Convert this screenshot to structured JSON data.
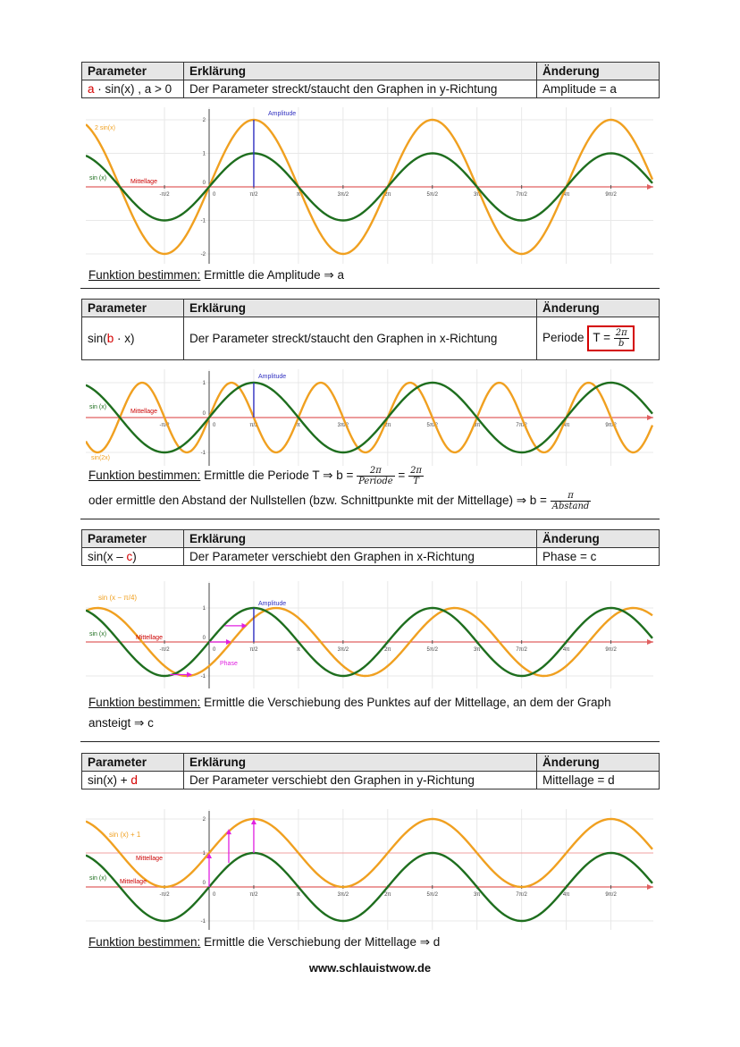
{
  "table_headers": {
    "parameter": "Parameter",
    "erklaerung": "Erklärung",
    "aenderung": "Änderung"
  },
  "sections": [
    {
      "param_parts": [
        {
          "t": "a",
          "red": true
        },
        {
          "t": " · sin(x) , a > 0",
          "red": false
        }
      ],
      "erklaerung": "Der Parameter streckt/staucht den Graphen in y-Richtung",
      "aenderung": "Amplitude = a"
    },
    {
      "param_parts": [
        {
          "t": "sin(",
          "red": false
        },
        {
          "t": "b",
          "red": true
        },
        {
          "t": " · x)",
          "red": false
        }
      ],
      "erklaerung": "Der Parameter streckt/staucht den Graphen in x-Richtung",
      "aenderung": "Periode",
      "formula": {
        "lhs": "T =",
        "num": "2π",
        "den": "b"
      }
    },
    {
      "param_parts": [
        {
          "t": "sin(x – ",
          "red": false
        },
        {
          "t": "c",
          "red": true
        },
        {
          "t": ")",
          "red": false
        }
      ],
      "erklaerung": "Der Parameter verschiebt den Graphen in x-Richtung",
      "aenderung": "Phase = c"
    },
    {
      "param_parts": [
        {
          "t": "sin(x) + ",
          "red": false
        },
        {
          "t": "d",
          "red": true
        }
      ],
      "erklaerung": "Der Parameter verschiebt den Graphen in y-Richtung",
      "aenderung": "Mittellage = d"
    }
  ],
  "texts": {
    "fb": "Funktion bestimmen:",
    "t1": "Ermittle die Amplitude ⇒ a",
    "t2a": "Ermittle die Periode T ⇒ b =",
    "t2_f1": {
      "num": "2π",
      "den": "Periode"
    },
    "t2_eq": "=",
    "t2_f2": {
      "num": "2π",
      "den": "T"
    },
    "t2b": "oder ermittle den Abstand der Nullstellen (bzw. Schnittpunkte mit der Mittellage) ⇒ b =",
    "t2_f3": {
      "num": "π",
      "den": "Abstand"
    },
    "t3a": "Ermittle die Verschiebung des Punktes auf der Mittellage, an dem der Graph",
    "t3b": "ansteigt ⇒ c",
    "t4": "Ermittle die Verschiebung der Mittellage ⇒ d"
  },
  "footer": "www.schlauistwow.de",
  "colors": {
    "green": "#1e6e1e",
    "orange": "#f0a020",
    "axis": "#e06060",
    "blue": "#3030c0",
    "magenta": "#e020e0"
  },
  "x_tick_labels": [
    "-π/2",
    "0",
    "π/2",
    "π",
    "3π/2",
    "2π",
    "5π/2",
    "3π",
    "7π/2",
    "4π",
    "9π/2"
  ],
  "graphs": [
    {
      "y_ticks": [
        "2",
        "1",
        "0",
        "-1",
        "-2"
      ],
      "labels": {
        "orange": "2 sin(x)",
        "green": "sin (x)",
        "mittellage": "Mittellage",
        "amplitude": "Amplitude"
      },
      "chart_data": {
        "type": "line",
        "xlim": [
          -4.0,
          14.9
        ],
        "ylim": [
          -2.2,
          2.2
        ],
        "series": [
          {
            "name": "2 sin(x)",
            "fn": "2*sin(x)"
          },
          {
            "name": "sin (x)",
            "fn": "sin(x)"
          }
        ]
      }
    },
    {
      "y_ticks": [
        "1",
        "0",
        "-1"
      ],
      "labels": {
        "orange": "sin(2x)",
        "green": "sin (x)",
        "mittellage": "Mittellage",
        "amplitude": "Amplitude"
      },
      "chart_data": {
        "type": "line",
        "xlim": [
          -4.0,
          14.9
        ],
        "ylim": [
          -1.2,
          1.2
        ],
        "series": [
          {
            "name": "sin(2x)",
            "fn": "sin(2x)"
          },
          {
            "name": "sin (x)",
            "fn": "sin(x)"
          }
        ]
      }
    },
    {
      "y_ticks": [
        "1",
        "0",
        "-1"
      ],
      "labels": {
        "orange": "sin (x − π/4)",
        "green": "sin (x)",
        "mittellage": "Mittellage",
        "amplitude": "Amplitude",
        "phase": "Phase"
      },
      "chart_data": {
        "type": "line",
        "xlim": [
          -4.0,
          14.9
        ],
        "ylim": [
          -1.2,
          1.2
        ],
        "series": [
          {
            "name": "sin (x − π/4)",
            "fn": "sin(x-π/4)"
          },
          {
            "name": "sin (x)",
            "fn": "sin(x)"
          }
        ]
      }
    },
    {
      "y_ticks": [
        "2",
        "1",
        "0",
        "-1"
      ],
      "labels": {
        "orange": "sin (x) + 1",
        "green": "sin (x)",
        "mittellage_orange": "Mittellage",
        "mittellage_green": "Mittellage"
      },
      "chart_data": {
        "type": "line",
        "xlim": [
          -4.0,
          14.9
        ],
        "ylim": [
          -1.2,
          2.2
        ],
        "series": [
          {
            "name": "sin (x) + 1",
            "fn": "sin(x)+1"
          },
          {
            "name": "sin (x)",
            "fn": "sin(x)"
          }
        ]
      }
    }
  ]
}
